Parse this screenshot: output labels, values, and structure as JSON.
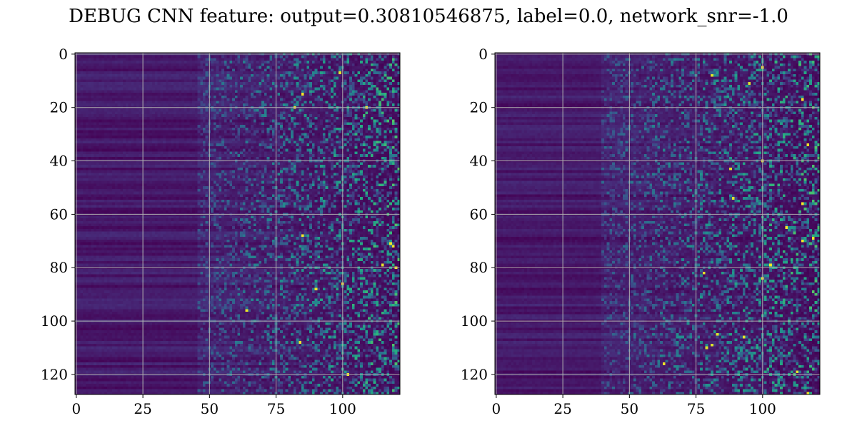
{
  "figure": {
    "title": "DEBUG CNN feature: output=0.30810546875, label=0.0, network_snr=-1.0"
  },
  "chart_data": [
    {
      "type": "heatmap",
      "colormap": "viridis",
      "rows": 128,
      "cols": 122,
      "xlim": [
        -0.5,
        121.5
      ],
      "ylim": [
        127.5,
        -0.5
      ],
      "xticks": [
        0,
        25,
        50,
        75,
        100
      ],
      "yticks": [
        0,
        20,
        40,
        60,
        80,
        100,
        120
      ],
      "xtick_labels": [
        "0",
        "25",
        "50",
        "75",
        "100"
      ],
      "ytick_labels": [
        "0",
        "20",
        "40",
        "60",
        "80",
        "100",
        "120"
      ],
      "grid": true,
      "value_range": [
        0,
        1
      ],
      "description_of_values": "low near-constant values for columns 0-45, increasingly noisy higher values toward columns 75-121"
    },
    {
      "type": "heatmap",
      "colormap": "viridis",
      "rows": 128,
      "cols": 122,
      "xlim": [
        -0.5,
        121.5
      ],
      "ylim": [
        127.5,
        -0.5
      ],
      "xticks": [
        0,
        25,
        50,
        75,
        100
      ],
      "yticks": [
        0,
        20,
        40,
        60,
        80,
        100,
        120
      ],
      "xtick_labels": [
        "0",
        "25",
        "50",
        "75",
        "100"
      ],
      "ytick_labels": [
        "0",
        "20",
        "40",
        "60",
        "80",
        "100",
        "120"
      ],
      "grid": true,
      "value_range": [
        0,
        1
      ],
      "description_of_values": "low near-constant values for columns 0-45, increasingly noisy higher values toward columns 70-121"
    }
  ]
}
